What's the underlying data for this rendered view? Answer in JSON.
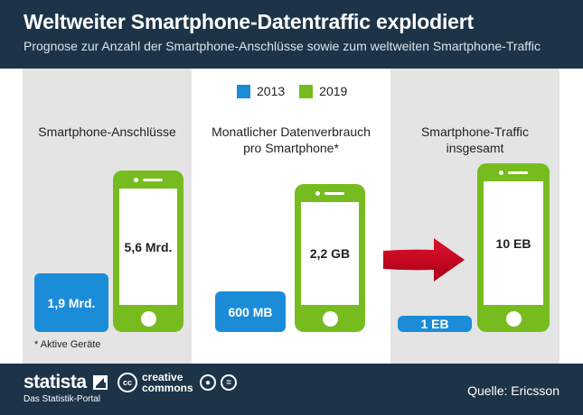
{
  "header": {
    "title": "Weltweiter Smartphone-Datentraffic explodiert",
    "subtitle": "Prognose zur Anzahl der Smartphone-Anschlüsse sowie zum weltweiten Smartphone-Traffic"
  },
  "legend": {
    "items": [
      {
        "label": "2013",
        "color": "#1b8cd8"
      },
      {
        "label": "2019",
        "color": "#77bc1f"
      }
    ]
  },
  "colors": {
    "header_bg": "#1d3448",
    "blue_2013": "#1b8cd8",
    "green_2019": "#77bc1f",
    "arrow": "#c8001e"
  },
  "chart_data": [
    {
      "type": "bar",
      "title": "Smartphone-Anschlüsse",
      "categories": [
        "2013",
        "2019"
      ],
      "values": [
        1.9,
        5.6
      ],
      "unit": "Mrd.",
      "labels": [
        "1,9 Mrd.",
        "5,6 Mrd."
      ],
      "footnote": "* Aktive Geräte"
    },
    {
      "type": "bar",
      "title_line1": "Monatlicher Datenverbrauch",
      "title_line2": "pro Smartphone*",
      "categories": [
        "2013",
        "2019"
      ],
      "values": [
        600,
        2200
      ],
      "unit": "MB",
      "labels": [
        "600 MB",
        "2,2 GB"
      ]
    },
    {
      "type": "bar",
      "title_line1": "Smartphone-Traffic",
      "title_line2": "insgesamt",
      "categories": [
        "2013",
        "2019"
      ],
      "values": [
        1,
        10
      ],
      "unit": "EB",
      "labels": [
        "1 EB",
        "10 EB"
      ]
    }
  ],
  "footer": {
    "brand": "statista",
    "brand_sub": "Das Statistik-Portal",
    "cc_icon": "cc",
    "cc_text_line1": "creative",
    "cc_text_line2": "commons",
    "license_icons": [
      "attribution-icon",
      "no-derivatives-icon"
    ],
    "source": "Quelle: Ericsson"
  }
}
